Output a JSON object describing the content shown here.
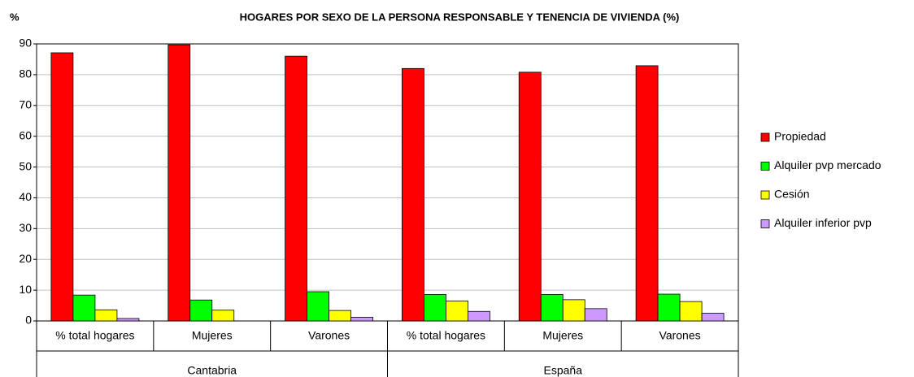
{
  "chart_data": {
    "type": "bar",
    "title": "HOGARES POR SEXO DE LA PERSONA RESPONSABLE Y TENENCIA DE VIVIENDA (%)",
    "y_label": "%",
    "groups": [
      {
        "name": "Cantabria",
        "categories": [
          "% total hogares",
          "Mujeres",
          "Varones"
        ]
      },
      {
        "name": "España",
        "categories": [
          "% total hogares",
          "Mujeres",
          "Varones"
        ]
      }
    ],
    "series": [
      {
        "name": "Propiedad",
        "color": "#ff0000",
        "values": [
          87.1,
          89.7,
          86,
          82,
          80.8,
          82.9
        ]
      },
      {
        "name": "Alquiler pvp mercado",
        "color": "#00ff00",
        "values": [
          8.4,
          6.8,
          9.5,
          8.6,
          8.6,
          8.7
        ]
      },
      {
        "name": "Cesión",
        "color": "#ffff00",
        "values": [
          3.6,
          3.5,
          3.4,
          6.5,
          6.9,
          6.3
        ]
      },
      {
        "name": "Alquiler inferior pvp",
        "color": "#cc99ff",
        "values": [
          0.8,
          0,
          1.2,
          3.1,
          4,
          2.5
        ]
      }
    ],
    "ylim": [
      0,
      90
    ],
    "yticks": [
      0,
      10,
      20,
      30,
      40,
      50,
      60,
      70,
      80,
      90
    ],
    "grid": true,
    "legend": "right"
  }
}
